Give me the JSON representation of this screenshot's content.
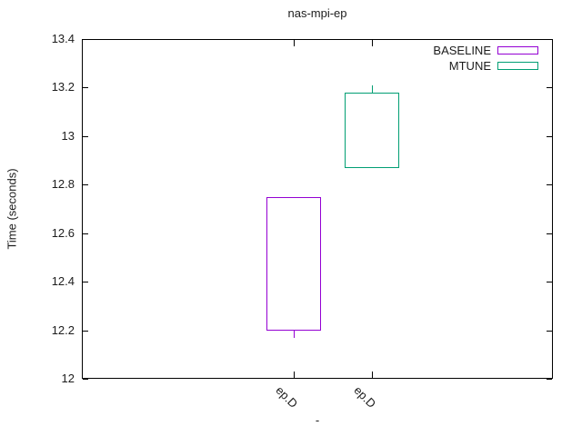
{
  "chart_data": {
    "type": "candlestick",
    "title": "nas-mpi-ep",
    "ylabel": "Time (seconds)",
    "xlabel": "-",
    "ylim": [
      12,
      13.4
    ],
    "yticks": [
      12,
      12.2,
      12.4,
      12.6,
      12.8,
      13,
      13.2,
      13.4
    ],
    "xlim": [
      -1.7,
      4.3
    ],
    "boxwidth": 0.7,
    "grid": false,
    "legend_position": "top-right-inside",
    "categories": [
      "ep.D",
      "ep.D"
    ],
    "series": [
      {
        "name": "BASELINE",
        "color": "#9400d3",
        "category": "ep.D",
        "position": 1,
        "whisker_low": 12.17,
        "box_low": 12.2,
        "box_high": 12.75,
        "whisker_high": 12.75
      },
      {
        "name": "MTUNE",
        "color": "#009e73",
        "category": "ep.D",
        "position": 2,
        "whisker_low": 12.87,
        "box_low": 12.87,
        "box_high": 13.18,
        "whisker_high": 13.21
      }
    ]
  }
}
